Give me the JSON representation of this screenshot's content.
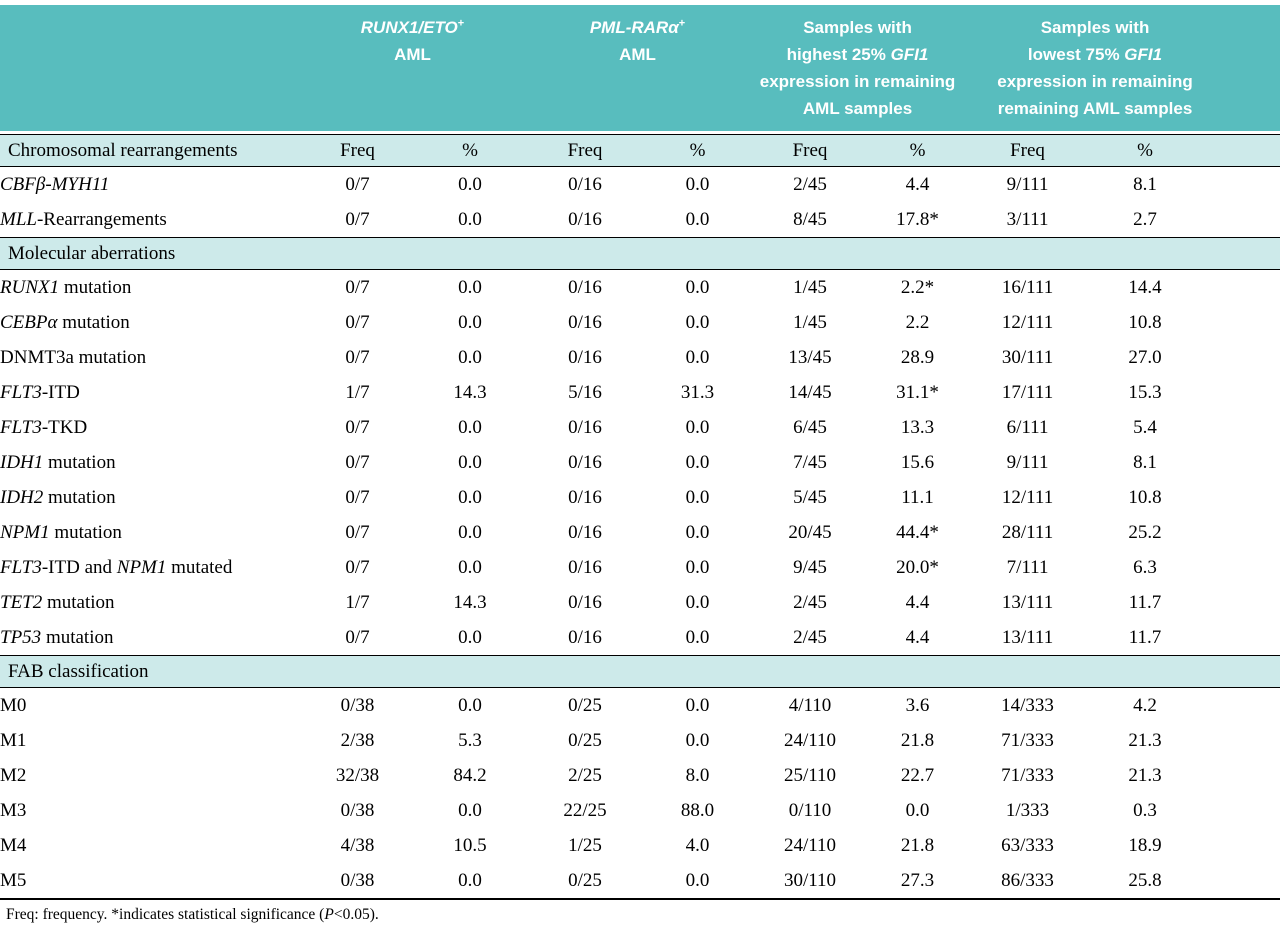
{
  "colors": {
    "header_teal": "#58bdbe",
    "band_teal": "#cdeaea",
    "header_text": "#ffffff",
    "body_text": "#000000"
  },
  "header": {
    "groups": [
      {
        "name": "runx1-eto-aml",
        "parts": [
          {
            "t": "RUNX1/ETO",
            "i": true
          },
          {
            "t": "+",
            "sup": true
          },
          {
            "t": "\nAML"
          }
        ]
      },
      {
        "name": "pml-rara-aml",
        "parts": [
          {
            "t": "PML-RARα",
            "i": true
          },
          {
            "t": "+",
            "sup": true
          },
          {
            "t": "\nAML"
          }
        ]
      },
      {
        "name": "highest-25-gfi1",
        "parts": [
          {
            "t": "Samples with\nhighest 25% "
          },
          {
            "t": "GFI1",
            "i": true
          },
          {
            "t": "\nexpression in remaining\nAML samples"
          }
        ]
      },
      {
        "name": "lowest-75-gfi1",
        "parts": [
          {
            "t": "Samples with\nlowest 75% "
          },
          {
            "t": "GFI1",
            "i": true
          },
          {
            "t": "\nexpression in remaining\nremaining AML samples"
          }
        ]
      }
    ]
  },
  "subheaders": [
    "Freq",
    "%",
    "Freq",
    "%",
    "Freq",
    "%",
    "Freq",
    "%"
  ],
  "sections": [
    {
      "title": "Chromosomal rearrangements",
      "with_subheaders": true,
      "rows": [
        {
          "label_parts": [
            {
              "t": "CBFβ-MYH11",
              "i": true
            }
          ],
          "values": [
            "0/7",
            "0.0",
            "0/16",
            "0.0",
            "2/45",
            "4.4",
            "9/111",
            "8.1"
          ]
        },
        {
          "label_parts": [
            {
              "t": "MLL",
              "i": true
            },
            {
              "t": "-Rearrangements"
            }
          ],
          "values": [
            "0/7",
            "0.0",
            "0/16",
            "0.0",
            "8/45",
            "17.8*",
            "3/111",
            "2.7"
          ]
        }
      ]
    },
    {
      "title": "Molecular aberrations",
      "with_subheaders": false,
      "rows": [
        {
          "label_parts": [
            {
              "t": "RUNX1",
              "i": true
            },
            {
              "t": " mutation"
            }
          ],
          "values": [
            "0/7",
            "0.0",
            "0/16",
            "0.0",
            "1/45",
            "2.2*",
            "16/111",
            "14.4"
          ]
        },
        {
          "label_parts": [
            {
              "t": "CEBPα",
              "i": true
            },
            {
              "t": " mutation"
            }
          ],
          "values": [
            "0/7",
            "0.0",
            "0/16",
            "0.0",
            "1/45",
            "2.2",
            "12/111",
            "10.8"
          ]
        },
        {
          "label_parts": [
            {
              "t": "DNMT3a mutation"
            }
          ],
          "values": [
            "0/7",
            "0.0",
            "0/16",
            "0.0",
            "13/45",
            "28.9",
            "30/111",
            "27.0"
          ]
        },
        {
          "label_parts": [
            {
              "t": "FLT3",
              "i": true
            },
            {
              "t": "-ITD"
            }
          ],
          "values": [
            "1/7",
            "14.3",
            "5/16",
            "31.3",
            "14/45",
            "31.1*",
            "17/111",
            "15.3"
          ]
        },
        {
          "label_parts": [
            {
              "t": "FLT3",
              "i": true
            },
            {
              "t": "-TKD"
            }
          ],
          "values": [
            "0/7",
            "0.0",
            "0/16",
            "0.0",
            "6/45",
            "13.3",
            "6/111",
            "5.4"
          ]
        },
        {
          "label_parts": [
            {
              "t": "IDH1",
              "i": true
            },
            {
              "t": " mutation"
            }
          ],
          "values": [
            "0/7",
            "0.0",
            "0/16",
            "0.0",
            "7/45",
            "15.6",
            "9/111",
            "8.1"
          ]
        },
        {
          "label_parts": [
            {
              "t": "IDH2",
              "i": true
            },
            {
              "t": " mutation"
            }
          ],
          "values": [
            "0/7",
            "0.0",
            "0/16",
            "0.0",
            "5/45",
            "11.1",
            "12/111",
            "10.8"
          ]
        },
        {
          "label_parts": [
            {
              "t": "NPM1",
              "i": true
            },
            {
              "t": " mutation"
            }
          ],
          "values": [
            "0/7",
            "0.0",
            "0/16",
            "0.0",
            "20/45",
            "44.4*",
            "28/111",
            "25.2"
          ]
        },
        {
          "label_parts": [
            {
              "t": "FLT3",
              "i": true
            },
            {
              "t": "-ITD and "
            },
            {
              "t": "NPM1",
              "i": true
            },
            {
              "t": " mutated"
            }
          ],
          "values": [
            "0/7",
            "0.0",
            "0/16",
            "0.0",
            "9/45",
            "20.0*",
            "7/111",
            "6.3"
          ]
        },
        {
          "label_parts": [
            {
              "t": "TET2",
              "i": true
            },
            {
              "t": " mutation"
            }
          ],
          "values": [
            "1/7",
            "14.3",
            "0/16",
            "0.0",
            "2/45",
            "4.4",
            "13/111",
            "11.7"
          ]
        },
        {
          "label_parts": [
            {
              "t": "TP53",
              "i": true
            },
            {
              "t": " mutation"
            }
          ],
          "values": [
            "0/7",
            "0.0",
            "0/16",
            "0.0",
            "2/45",
            "4.4",
            "13/111",
            "11.7"
          ]
        }
      ]
    },
    {
      "title": "FAB classification",
      "with_subheaders": false,
      "rows": [
        {
          "label_parts": [
            {
              "t": "M0"
            }
          ],
          "values": [
            "0/38",
            "0.0",
            "0/25",
            "0.0",
            "4/110",
            "3.6",
            "14/333",
            "4.2"
          ]
        },
        {
          "label_parts": [
            {
              "t": "M1"
            }
          ],
          "values": [
            "2/38",
            "5.3",
            "0/25",
            "0.0",
            "24/110",
            "21.8",
            "71/333",
            "21.3"
          ]
        },
        {
          "label_parts": [
            {
              "t": "M2"
            }
          ],
          "values": [
            "32/38",
            "84.2",
            "2/25",
            "8.0",
            "25/110",
            "22.7",
            "71/333",
            "21.3"
          ]
        },
        {
          "label_parts": [
            {
              "t": "M3"
            }
          ],
          "values": [
            "0/38",
            "0.0",
            "22/25",
            "88.0",
            "0/110",
            "0.0",
            "1/333",
            "0.3"
          ]
        },
        {
          "label_parts": [
            {
              "t": "M4"
            }
          ],
          "values": [
            "4/38",
            "10.5",
            "1/25",
            "4.0",
            "24/110",
            "21.8",
            "63/333",
            "18.9"
          ]
        },
        {
          "label_parts": [
            {
              "t": "M5"
            }
          ],
          "values": [
            "0/38",
            "0.0",
            "0/25",
            "0.0",
            "30/110",
            "27.3",
            "86/333",
            "25.8"
          ]
        }
      ]
    }
  ],
  "footnote": {
    "parts": [
      {
        "t": "Freq: frequency. *indicates statistical significance ("
      },
      {
        "t": "P",
        "i": true
      },
      {
        "t": "<0.05)."
      }
    ]
  }
}
